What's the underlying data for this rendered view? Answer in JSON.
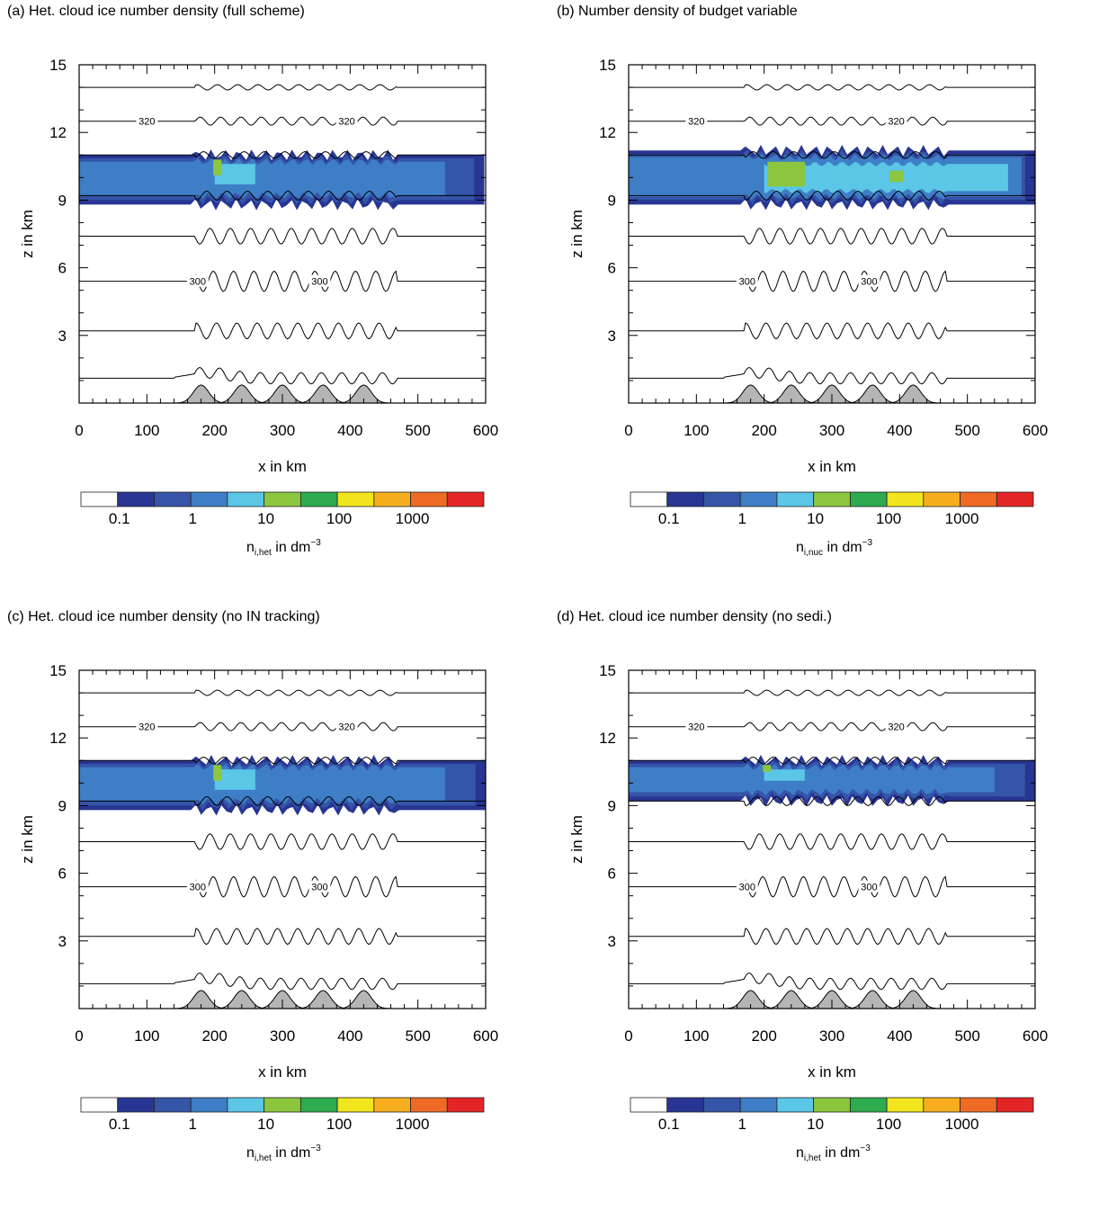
{
  "figure": {
    "colorbar_levels": [
      "0.1",
      "1",
      "10",
      "100",
      "1000"
    ],
    "colorbar_colors": [
      "#ffffff",
      "#283593",
      "#3555a8",
      "#3e7ec6",
      "#5bc6e6",
      "#8cc63f",
      "#2eaa4f",
      "#f1e51e",
      "#f6ae1e",
      "#ee6a25",
      "#e42527"
    ],
    "contour_labels": [
      "320",
      "300"
    ]
  },
  "chart_data": [
    {
      "type": "heatmap",
      "panel": "a",
      "title": "(a) Het. cloud ice number density (full scheme)",
      "xlabel": "x in km",
      "ylabel": "z in km",
      "xlim": [
        0,
        600
      ],
      "ylim": [
        0,
        15
      ],
      "xticks": [
        "0",
        "100",
        "200",
        "300",
        "400",
        "500",
        "600"
      ],
      "yticks": [
        "3",
        "6",
        "9",
        "12",
        "15"
      ],
      "colorbar_label": "n",
      "colorbar_subscript": "i,het",
      "colorbar_units": " in dm",
      "colorbar_exponent": "−3",
      "mountain_peaks_km": [
        180,
        240,
        300,
        360,
        420
      ],
      "cloud_layer_km": [
        8.8,
        11.0
      ]
    },
    {
      "type": "heatmap",
      "panel": "b",
      "title": "(b) Number density of budget variable",
      "xlabel": "x in km",
      "ylabel": "z in km",
      "xlim": [
        0,
        600
      ],
      "ylim": [
        0,
        15
      ],
      "xticks": [
        "0",
        "100",
        "200",
        "300",
        "400",
        "500",
        "600"
      ],
      "yticks": [
        "3",
        "6",
        "9",
        "12",
        "15"
      ],
      "colorbar_label": "n",
      "colorbar_subscript": "i,nuc",
      "colorbar_units": " in dm",
      "colorbar_exponent": "−3",
      "mountain_peaks_km": [
        180,
        240,
        300,
        360,
        420
      ],
      "cloud_layer_km": [
        8.8,
        11.2
      ]
    },
    {
      "type": "heatmap",
      "panel": "c",
      "title": "(c) Het. cloud ice number density (no IN tracking)",
      "xlabel": "x in km",
      "ylabel": "z in km",
      "xlim": [
        0,
        600
      ],
      "ylim": [
        0,
        15
      ],
      "xticks": [
        "0",
        "100",
        "200",
        "300",
        "400",
        "500",
        "600"
      ],
      "yticks": [
        "3",
        "6",
        "9",
        "12",
        "15"
      ],
      "colorbar_label": "n",
      "colorbar_subscript": "i,het",
      "colorbar_units": " in dm",
      "colorbar_exponent": "−3",
      "mountain_peaks_km": [
        180,
        240,
        300,
        360,
        420
      ],
      "cloud_layer_km": [
        8.8,
        11.0
      ]
    },
    {
      "type": "heatmap",
      "panel": "d",
      "title": "(d) Het. cloud ice number density (no sedi.)",
      "xlabel": "x in km",
      "ylabel": "z in km",
      "xlim": [
        0,
        600
      ],
      "ylim": [
        0,
        15
      ],
      "xticks": [
        "0",
        "100",
        "200",
        "300",
        "400",
        "500",
        "600"
      ],
      "yticks": [
        "3",
        "6",
        "9",
        "12",
        "15"
      ],
      "colorbar_label": "n",
      "colorbar_subscript": "i,het",
      "colorbar_units": " in dm",
      "colorbar_exponent": "−3",
      "mountain_peaks_km": [
        180,
        240,
        300,
        360,
        420
      ],
      "cloud_layer_km": [
        9.2,
        11.0
      ]
    }
  ]
}
